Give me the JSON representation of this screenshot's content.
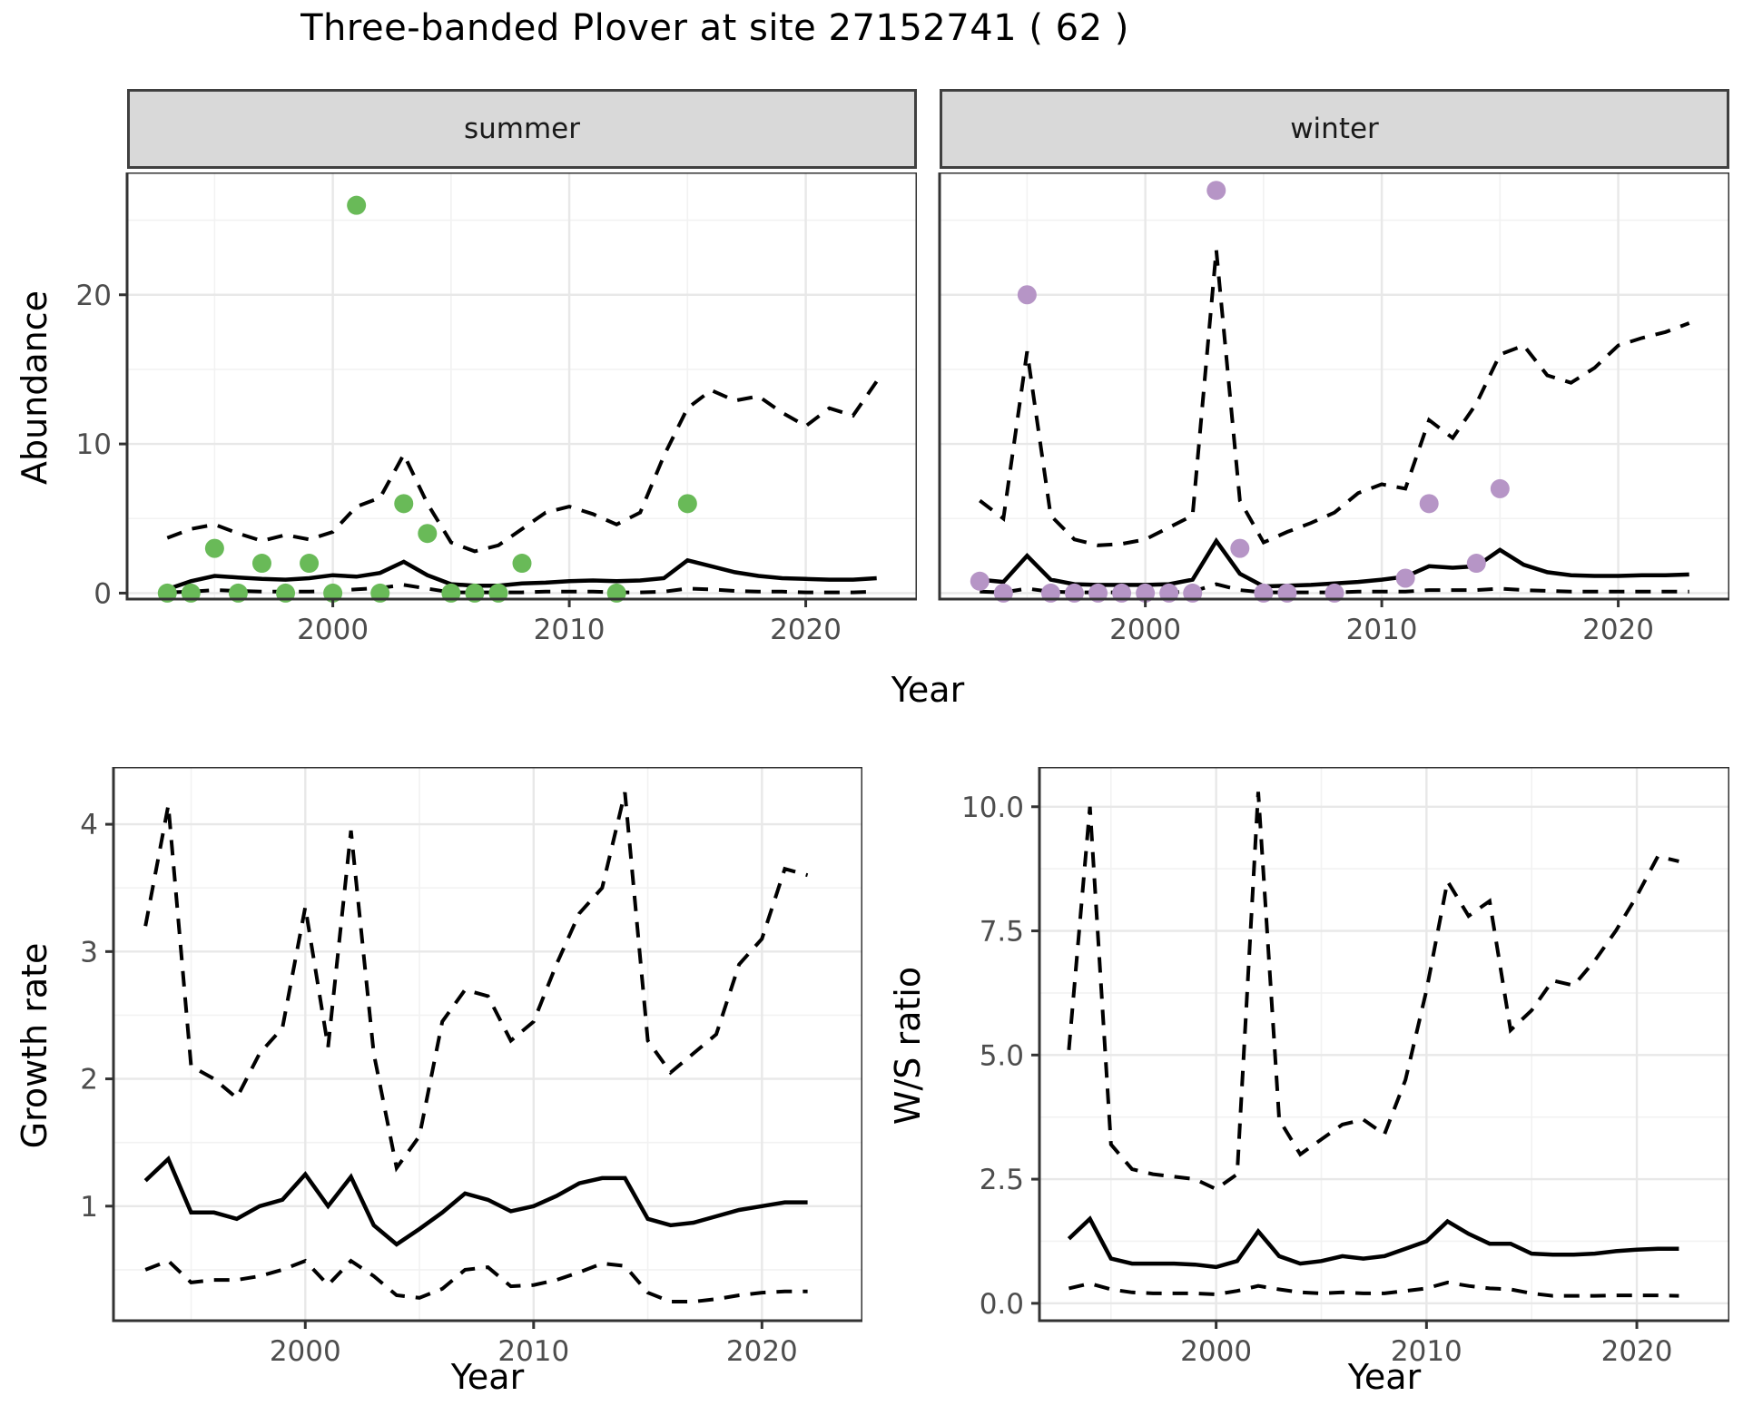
{
  "title": "Three-banded Plover at site 27152741 ( 62 )",
  "facets": {
    "summer": "summer",
    "winter": "winter"
  },
  "axes": {
    "abundance": "Abundance",
    "year": "Year",
    "growth": "Growth rate",
    "ws": "W/S ratio"
  },
  "colors": {
    "summer_points": "#69BA58",
    "winter_points": "#B695C6",
    "line": "#000000",
    "grid_major": "#e8e8e8",
    "grid_minor": "#f2f2f2",
    "strip_bg": "#d9d9d9",
    "panel_border": "#333333",
    "tick_mark": "#333333",
    "tick_text": "#4d4d4d"
  },
  "chart_data": [
    {
      "id": "abundance-summer",
      "type": "line",
      "facet": "summer",
      "xlabel": "Year",
      "ylabel": "Abundance",
      "x": [
        1993,
        1994,
        1995,
        1996,
        1997,
        1998,
        1999,
        2000,
        2001,
        2002,
        2003,
        2004,
        2005,
        2006,
        2007,
        2008,
        2009,
        2010,
        2011,
        2012,
        2013,
        2014,
        2015,
        2016,
        2017,
        2018,
        2019,
        2020,
        2021,
        2022,
        2023
      ],
      "series": [
        {
          "name": "median",
          "style": "solid",
          "values": [
            0.25,
            0.8,
            1.15,
            1.05,
            0.95,
            0.9,
            1.0,
            1.2,
            1.1,
            1.35,
            2.1,
            1.2,
            0.6,
            0.5,
            0.5,
            0.65,
            0.7,
            0.8,
            0.85,
            0.8,
            0.85,
            1.0,
            2.2,
            1.8,
            1.4,
            1.15,
            1.0,
            0.95,
            0.9,
            0.9,
            1.0
          ]
        },
        {
          "name": "upper-ci",
          "style": "dashed",
          "values": [
            3.7,
            4.3,
            4.6,
            4.0,
            3.5,
            3.9,
            3.6,
            4.1,
            5.8,
            6.4,
            9.3,
            6.0,
            3.4,
            2.8,
            3.2,
            4.3,
            5.4,
            5.8,
            5.3,
            4.6,
            5.4,
            9.2,
            12.4,
            13.6,
            12.9,
            13.2,
            12.1,
            11.2,
            12.4,
            11.9,
            14.2
          ]
        },
        {
          "name": "lower-ci",
          "style": "dashed",
          "values": [
            0.05,
            0.1,
            0.2,
            0.15,
            0.1,
            0.1,
            0.1,
            0.15,
            0.25,
            0.35,
            0.55,
            0.3,
            0.05,
            0.05,
            0.05,
            0.05,
            0.1,
            0.1,
            0.1,
            0.05,
            0.05,
            0.1,
            0.3,
            0.25,
            0.15,
            0.1,
            0.1,
            0.05,
            0.05,
            0.05,
            0.1
          ]
        }
      ],
      "points": {
        "name": "observed-counts-summer",
        "color": "#69BA58",
        "data": [
          [
            1993,
            0
          ],
          [
            1994,
            0
          ],
          [
            1995,
            3
          ],
          [
            1996,
            0
          ],
          [
            1997,
            2
          ],
          [
            1998,
            0
          ],
          [
            1999,
            2
          ],
          [
            2000,
            0
          ],
          [
            2001,
            26
          ],
          [
            2002,
            0
          ],
          [
            2003,
            6
          ],
          [
            2004,
            4
          ],
          [
            2005,
            0
          ],
          [
            2006,
            0
          ],
          [
            2007,
            0
          ],
          [
            2008,
            2
          ],
          [
            2012,
            0
          ],
          [
            2015,
            6
          ]
        ]
      },
      "xlim": [
        1991.3,
        2024.7
      ],
      "ylim": [
        -0.4,
        28.2
      ],
      "xticks": {
        "values": [
          2000,
          2010,
          2020
        ],
        "labels": [
          "2000",
          "2010",
          "2020"
        ],
        "minor": [
          1995,
          2005,
          2015
        ]
      },
      "yticks": {
        "values": [
          0,
          10,
          20
        ],
        "labels": [
          "0",
          "10",
          "20"
        ],
        "minor": [
          5,
          15,
          25
        ]
      },
      "grid": true,
      "legend": "none"
    },
    {
      "id": "abundance-winter",
      "type": "line",
      "facet": "winter",
      "xlabel": "Year",
      "ylabel": "Abundance",
      "x": [
        1993,
        1994,
        1995,
        1996,
        1997,
        1998,
        1999,
        2000,
        2001,
        2002,
        2003,
        2004,
        2005,
        2006,
        2007,
        2008,
        2009,
        2010,
        2011,
        2012,
        2013,
        2014,
        2015,
        2016,
        2017,
        2018,
        2019,
        2020,
        2021,
        2022,
        2023
      ],
      "series": [
        {
          "name": "median",
          "style": "solid",
          "values": [
            0.9,
            0.75,
            2.5,
            0.9,
            0.6,
            0.55,
            0.55,
            0.55,
            0.6,
            0.9,
            3.5,
            1.3,
            0.45,
            0.5,
            0.55,
            0.65,
            0.75,
            0.9,
            1.1,
            1.8,
            1.7,
            1.8,
            2.9,
            1.9,
            1.4,
            1.2,
            1.15,
            1.15,
            1.2,
            1.2,
            1.25
          ]
        },
        {
          "name": "upper-ci",
          "style": "dashed",
          "values": [
            6.2,
            5.0,
            16.2,
            5.2,
            3.6,
            3.2,
            3.3,
            3.6,
            4.4,
            5.2,
            23.0,
            6.2,
            3.4,
            4.1,
            4.7,
            5.4,
            6.7,
            7.3,
            7.0,
            11.6,
            10.4,
            12.7,
            16.0,
            16.6,
            14.6,
            14.1,
            15.1,
            16.6,
            17.1,
            17.5,
            18.1
          ]
        },
        {
          "name": "lower-ci",
          "style": "dashed",
          "values": [
            0.1,
            0.05,
            0.3,
            0.1,
            0.05,
            0.05,
            0.05,
            0.05,
            0.05,
            0.1,
            0.6,
            0.2,
            0.05,
            0.05,
            0.05,
            0.05,
            0.1,
            0.1,
            0.1,
            0.2,
            0.2,
            0.2,
            0.3,
            0.2,
            0.15,
            0.1,
            0.1,
            0.1,
            0.1,
            0.1,
            0.1
          ]
        }
      ],
      "points": {
        "name": "observed-counts-winter",
        "color": "#B695C6",
        "data": [
          [
            1993,
            0.8
          ],
          [
            1994,
            0
          ],
          [
            1995,
            20
          ],
          [
            1996,
            0
          ],
          [
            1997,
            0
          ],
          [
            1998,
            0
          ],
          [
            1999,
            0
          ],
          [
            2000,
            0
          ],
          [
            2001,
            0
          ],
          [
            2002,
            0
          ],
          [
            2003,
            27
          ],
          [
            2004,
            3
          ],
          [
            2005,
            0
          ],
          [
            2006,
            0
          ],
          [
            2008,
            0
          ],
          [
            2011,
            1
          ],
          [
            2012,
            6
          ],
          [
            2014,
            2
          ],
          [
            2015,
            7
          ]
        ]
      },
      "xlim": [
        1991.3,
        2024.7
      ],
      "ylim": [
        -0.4,
        28.2
      ],
      "xticks": {
        "values": [
          2000,
          2010,
          2020
        ],
        "labels": [
          "2000",
          "2010",
          "2020"
        ],
        "minor": [
          1995,
          2005,
          2015
        ]
      },
      "yticks": {
        "values": [
          0,
          10,
          20
        ],
        "labels": [
          "0",
          "10",
          "20"
        ],
        "minor": [
          5,
          15,
          25
        ]
      },
      "grid": true,
      "legend": "none"
    },
    {
      "id": "growth-rate",
      "type": "line",
      "facet": "",
      "xlabel": "Year",
      "ylabel": "Growth rate",
      "x": [
        1993,
        1994,
        1995,
        1996,
        1997,
        1998,
        1999,
        2000,
        2001,
        2002,
        2003,
        2004,
        2005,
        2006,
        2007,
        2008,
        2009,
        2010,
        2011,
        2012,
        2013,
        2014,
        2015,
        2016,
        2017,
        2018,
        2019,
        2020,
        2021,
        2022
      ],
      "series": [
        {
          "name": "median",
          "style": "solid",
          "values": [
            1.2,
            1.37,
            0.95,
            0.95,
            0.9,
            1.0,
            1.05,
            1.25,
            1.0,
            1.23,
            0.85,
            0.7,
            0.82,
            0.95,
            1.1,
            1.05,
            0.96,
            1.0,
            1.08,
            1.18,
            1.22,
            1.22,
            0.9,
            0.85,
            0.87,
            0.92,
            0.97,
            1.0,
            1.03,
            1.03
          ]
        },
        {
          "name": "upper-ci",
          "style": "dashed",
          "values": [
            3.2,
            4.15,
            2.1,
            2.0,
            1.85,
            2.2,
            2.4,
            3.35,
            2.25,
            3.95,
            2.2,
            1.3,
            1.55,
            2.45,
            2.7,
            2.65,
            2.3,
            2.45,
            2.9,
            3.3,
            3.5,
            4.25,
            2.3,
            2.05,
            2.2,
            2.35,
            2.9,
            3.1,
            3.65,
            3.6
          ]
        },
        {
          "name": "lower-ci",
          "style": "dashed",
          "values": [
            0.5,
            0.57,
            0.4,
            0.42,
            0.42,
            0.45,
            0.5,
            0.57,
            0.38,
            0.57,
            0.45,
            0.3,
            0.28,
            0.35,
            0.5,
            0.52,
            0.37,
            0.38,
            0.42,
            0.48,
            0.55,
            0.53,
            0.32,
            0.25,
            0.25,
            0.27,
            0.3,
            0.32,
            0.33,
            0.33
          ]
        }
      ],
      "points": {
        "name": "",
        "color": "",
        "data": []
      },
      "xlim": [
        1991.6,
        2024.4
      ],
      "ylim": [
        0.1,
        4.45
      ],
      "xticks": {
        "values": [
          2000,
          2010,
          2020
        ],
        "labels": [
          "2000",
          "2010",
          "2020"
        ],
        "minor": [
          1995,
          2005,
          2015
        ]
      },
      "yticks": {
        "values": [
          1,
          2,
          3,
          4
        ],
        "labels": [
          "1",
          "2",
          "3",
          "4"
        ],
        "minor": [
          0.5,
          1.5,
          2.5,
          3.5
        ]
      },
      "grid": true,
      "legend": "none"
    },
    {
      "id": "ws-ratio",
      "type": "line",
      "facet": "",
      "xlabel": "Year",
      "ylabel": "W/S ratio",
      "x": [
        1993,
        1994,
        1995,
        1996,
        1997,
        1998,
        1999,
        2000,
        2001,
        2002,
        2003,
        2004,
        2005,
        2006,
        2007,
        2008,
        2009,
        2010,
        2011,
        2012,
        2013,
        2014,
        2015,
        2016,
        2017,
        2018,
        2019,
        2020,
        2021,
        2022
      ],
      "series": [
        {
          "name": "median",
          "style": "solid",
          "values": [
            1.3,
            1.7,
            0.9,
            0.8,
            0.8,
            0.8,
            0.78,
            0.73,
            0.85,
            1.45,
            0.95,
            0.8,
            0.85,
            0.95,
            0.9,
            0.95,
            1.1,
            1.25,
            1.65,
            1.4,
            1.2,
            1.2,
            1.0,
            0.98,
            0.98,
            1.0,
            1.05,
            1.08,
            1.1,
            1.1
          ]
        },
        {
          "name": "upper-ci",
          "style": "dashed",
          "values": [
            5.1,
            10.0,
            3.2,
            2.7,
            2.6,
            2.55,
            2.5,
            2.3,
            2.6,
            10.3,
            3.7,
            3.0,
            3.3,
            3.6,
            3.7,
            3.4,
            4.5,
            6.3,
            8.5,
            7.8,
            8.1,
            5.5,
            5.9,
            6.5,
            6.4,
            6.9,
            7.5,
            8.2,
            9.0,
            8.9
          ]
        },
        {
          "name": "lower-ci",
          "style": "dashed",
          "values": [
            0.3,
            0.4,
            0.28,
            0.22,
            0.2,
            0.2,
            0.2,
            0.18,
            0.25,
            0.35,
            0.28,
            0.22,
            0.2,
            0.22,
            0.2,
            0.2,
            0.25,
            0.3,
            0.42,
            0.35,
            0.3,
            0.28,
            0.2,
            0.15,
            0.15,
            0.15,
            0.16,
            0.16,
            0.16,
            0.15
          ]
        }
      ],
      "points": {
        "name": "",
        "color": "",
        "data": []
      },
      "xlim": [
        1991.6,
        2024.4
      ],
      "ylim": [
        -0.35,
        10.8
      ],
      "xticks": {
        "values": [
          2000,
          2010,
          2020
        ],
        "labels": [
          "2000",
          "2010",
          "2020"
        ],
        "minor": [
          1995,
          2005,
          2015
        ]
      },
      "yticks": {
        "values": [
          0,
          2.5,
          5,
          7.5,
          10
        ],
        "labels": [
          "0.0",
          "2.5",
          "5.0",
          "7.5",
          "10.0"
        ],
        "minor": [
          1.25,
          3.75,
          6.25,
          8.75
        ]
      },
      "grid": true,
      "legend": "none"
    }
  ]
}
